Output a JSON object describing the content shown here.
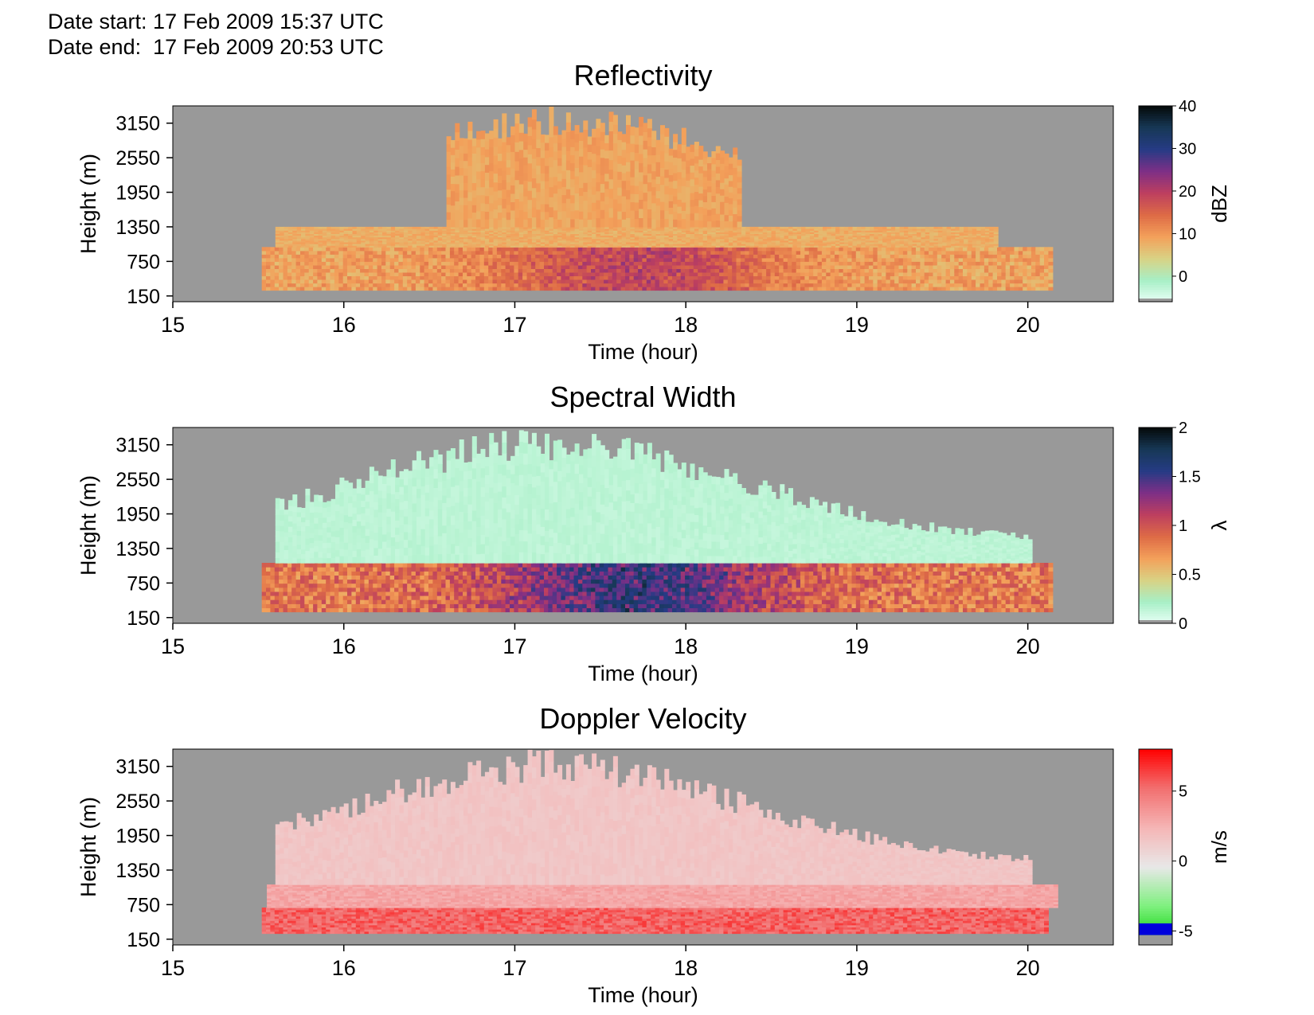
{
  "header": {
    "date_start": "Date start: 17 Feb 2009 15:37 UTC",
    "date_end": "Date end:  17 Feb 2009 20:53 UTC"
  },
  "colors": {
    "no_data": "#999999"
  },
  "chart_data": [
    {
      "type": "heatmap",
      "title": "Reflectivity",
      "xlabel": "Time (hour)",
      "ylabel": "Height (m)",
      "xlim": [
        15,
        20.5
      ],
      "ylim": [
        50,
        3450
      ],
      "x_ticks": [
        15,
        16,
        17,
        18,
        19,
        20
      ],
      "y_ticks": [
        150,
        750,
        1350,
        1950,
        2550,
        3150
      ],
      "colorbar": {
        "label": "dBZ",
        "range": [
          -6,
          40
        ],
        "ticks": [
          0,
          10,
          20,
          30,
          40
        ],
        "colors": [
          "#e9fff6",
          "#a7efc6",
          "#d9d284",
          "#f3a05a",
          "#de6b46",
          "#bd3f5f",
          "#7e2f86",
          "#263b85",
          "#173856",
          "#050a0a"
        ]
      },
      "layers": [
        {
          "t_start": 15.52,
          "t_end": 20.12,
          "h_bottom": 250,
          "h_top": 1000,
          "value": 16,
          "note_value_range": [
            6,
            24
          ]
        },
        {
          "t_start": 15.6,
          "t_end": 19.8,
          "h_bottom": 1000,
          "h_top": 1350,
          "value": 8
        },
        {
          "t_start": 16.6,
          "t_end": 18.3,
          "h_bottom": 1350,
          "h_top": 3450,
          "value": 9
        }
      ]
    },
    {
      "type": "heatmap",
      "title": "Spectral Width",
      "xlabel": "Time (hour)",
      "ylabel": "Height (m)",
      "xlim": [
        15,
        20.5
      ],
      "ylim": [
        50,
        3450
      ],
      "x_ticks": [
        15,
        16,
        17,
        18,
        19,
        20
      ],
      "y_ticks": [
        150,
        750,
        1350,
        1950,
        2550,
        3150
      ],
      "colorbar": {
        "label": "λ",
        "range": [
          0,
          2
        ],
        "ticks": [
          0,
          0.5,
          1,
          1.5,
          2
        ],
        "colors": [
          "#e9fff6",
          "#a7efc6",
          "#d9d284",
          "#f3a05a",
          "#de6b46",
          "#bd3f5f",
          "#7e2f86",
          "#263b85",
          "#173856",
          "#050a0a"
        ]
      },
      "layers": [
        {
          "t_start": 15.52,
          "t_end": 20.12,
          "h_bottom": 250,
          "h_top": 1100,
          "value": 0.9,
          "note_value_range": [
            0.6,
            1.9
          ]
        },
        {
          "t_start": 15.6,
          "t_end": 20.0,
          "h_bottom": 1100,
          "h_top": 3450,
          "value": 0.15
        }
      ]
    },
    {
      "type": "heatmap",
      "title": "Doppler Velocity",
      "xlabel": "Time (hour)",
      "ylabel": "Height (m)",
      "xlim": [
        15,
        20.5
      ],
      "ylim": [
        50,
        3450
      ],
      "x_ticks": [
        15,
        16,
        17,
        18,
        19,
        20
      ],
      "y_ticks": [
        150,
        750,
        1350,
        1950,
        2550,
        3150
      ],
      "colorbar": {
        "label": "m/s",
        "range": [
          -6,
          8
        ],
        "ticks": [
          -5,
          0,
          5
        ],
        "colors": [
          "#00d000",
          "#7ff07f",
          "#e8e8e8",
          "#f5b5b5",
          "#f27070",
          "#ff0000"
        ],
        "below_colors": [
          "#999999",
          "#0000dd"
        ]
      },
      "layers": [
        {
          "t_start": 15.52,
          "t_end": 20.1,
          "h_bottom": 250,
          "h_top": 700,
          "value": 5.5
        },
        {
          "t_start": 15.55,
          "t_end": 20.15,
          "h_bottom": 700,
          "h_top": 1100,
          "value": 3
        },
        {
          "t_start": 15.6,
          "t_end": 20.0,
          "h_bottom": 1100,
          "h_top": 3450,
          "value": 1.5
        }
      ]
    }
  ]
}
